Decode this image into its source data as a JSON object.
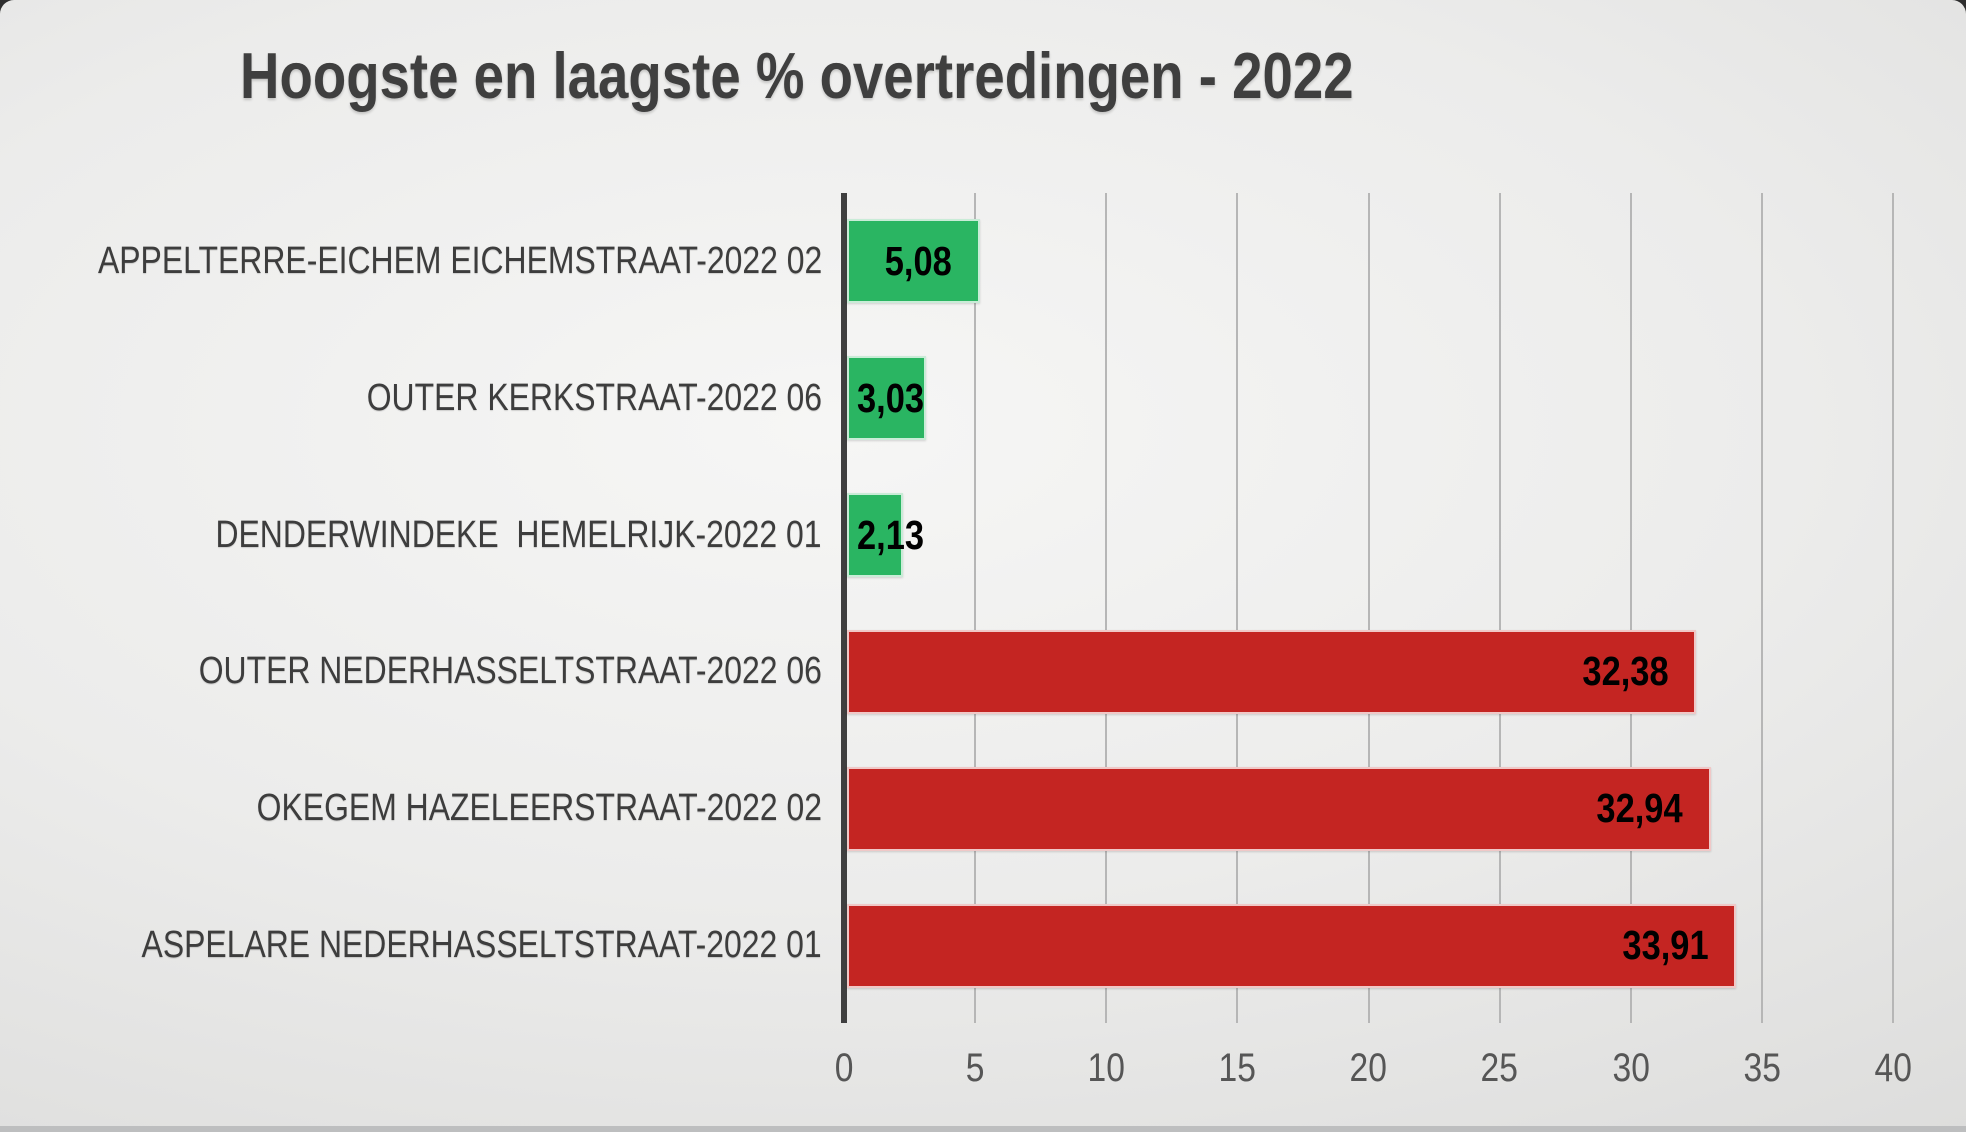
{
  "chart_data": {
    "type": "bar",
    "orientation": "horizontal",
    "title": "Hoogste en laagste % overtredingen - 2022",
    "categories": [
      "APPELTERRE-EICHEM EICHEMSTRAAT-2022 02",
      "OUTER KERKSTRAAT-2022 06",
      "DENDERWINDEKE  HEMELRIJK-2022 01",
      "OUTER NEDERHASSELTSTRAAT-2022 06",
      "OKEGEM HAZELEERSTRAAT-2022 02",
      "ASPELARE NEDERHASSELTSTRAAT-2022 01"
    ],
    "values": [
      5.08,
      3.03,
      2.13,
      32.38,
      32.94,
      33.91
    ],
    "value_labels": [
      "5,08",
      "3,03",
      "2,13",
      "32,38",
      "32,94",
      "33,91"
    ],
    "bar_colors": [
      "#2ab562",
      "#2ab562",
      "#2ab562",
      "#c42522",
      "#c42522",
      "#c42522"
    ],
    "xlim": [
      0,
      40
    ],
    "x_ticks": [
      0,
      5,
      10,
      15,
      20,
      25,
      30,
      35,
      40
    ],
    "x_tick_labels": [
      "0",
      "5",
      "10",
      "15",
      "20",
      "25",
      "30",
      "35",
      "40"
    ],
    "grid": true,
    "legend": false,
    "xlabel": "",
    "ylabel": ""
  },
  "theme": {
    "green": "#2ab562",
    "red": "#c42522",
    "axis_line_color": "#3f3f3f",
    "gridline_color": "#b6b6b6",
    "title_color": "#3f3f3f",
    "category_label_color": "#3d3d3d",
    "tick_label_color": "#565656",
    "data_label_color": "#000000",
    "slide_background_center": "#f6f6f5",
    "slide_background_edge": "#d0d0cf"
  }
}
